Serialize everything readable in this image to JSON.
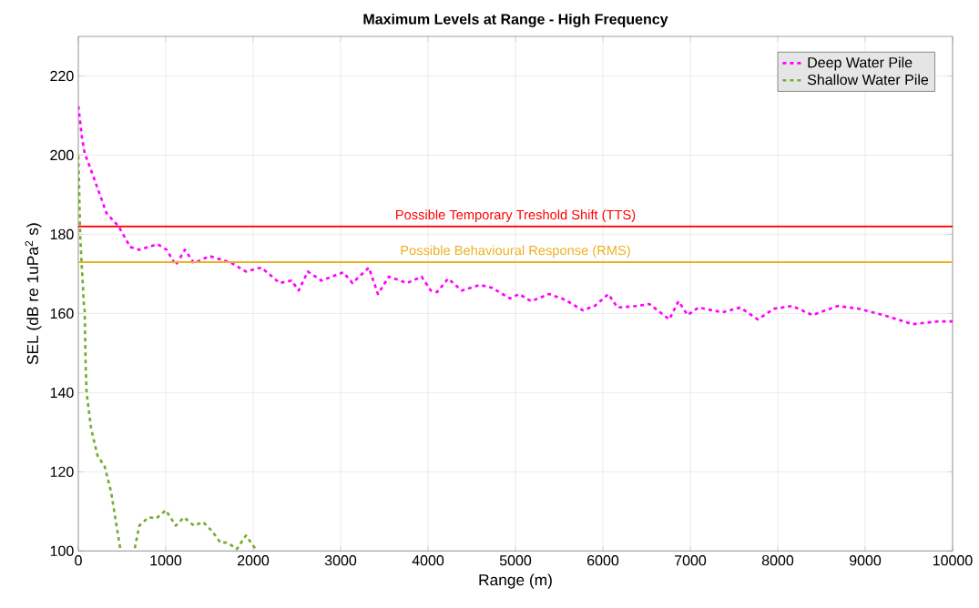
{
  "chart_data": {
    "type": "line",
    "title": "**Maximum Levels at Range - High Frequency**",
    "xlabel": "Range (m)",
    "ylabel": "SEL (dB re 1uPa$^{2}$ s)",
    "xlim": [
      0,
      10000
    ],
    "ylim": [
      100,
      230
    ],
    "xticks": [
      0,
      1000,
      2000,
      3000,
      4000,
      5000,
      6000,
      7000,
      8000,
      9000,
      10000
    ],
    "yticks": [
      100,
      120,
      140,
      160,
      180,
      200,
      220
    ],
    "grid": true,
    "legend": "top right",
    "series": [
      {
        "name": "Deep Water Pile",
        "color": "#ff00ff",
        "line_style": "dashed",
        "x": [
          0,
          42,
          73,
          177,
          323,
          458,
          594,
          698,
          906,
          1010,
          1115,
          1219,
          1323,
          1500,
          1740,
          1917,
          2094,
          2302,
          2438,
          2521,
          2625,
          2781,
          3031,
          3135,
          3323,
          3427,
          3552,
          3760,
          3927,
          4031,
          4104,
          4229,
          4385,
          4594,
          4729,
          4938,
          5042,
          5177,
          5385,
          5563,
          5771,
          5906,
          6063,
          6167,
          6396,
          6531,
          6760,
          6865,
          6969,
          7094,
          7365,
          7573,
          7771,
          7958,
          8167,
          8396,
          8688,
          8927,
          9208,
          9542,
          9833,
          10000
        ],
        "values": [
          212.4,
          204.4,
          200.5,
          194.3,
          185.3,
          182.1,
          176.8,
          176.1,
          177.5,
          176.1,
          172.2,
          176.1,
          172.7,
          174.5,
          172.9,
          170.6,
          171.6,
          167.7,
          168.3,
          165.8,
          170.6,
          168.3,
          170.4,
          167.7,
          171.6,
          164.9,
          169.3,
          167.7,
          169.3,
          165.8,
          165.4,
          168.8,
          165.8,
          167.2,
          166.5,
          163.8,
          164.9,
          163.1,
          164.9,
          163.5,
          160.8,
          161.9,
          164.9,
          161.5,
          161.9,
          162.4,
          158.5,
          163.1,
          159.6,
          161.5,
          160.3,
          161.5,
          158.5,
          161.2,
          161.9,
          159.6,
          161.9,
          161.2,
          159.6,
          157.3,
          158.0,
          158.0
        ]
      },
      {
        "name": "Shallow Water Pile",
        "color": "#77ac30",
        "line_style": "dashed",
        "x": [
          0,
          10,
          21,
          63,
          73,
          83,
          94,
          146,
          219,
          302,
          375,
          479,
          560,
          646,
          698,
          802,
          896,
          1000,
          1115,
          1208,
          1323,
          1427,
          1531,
          1625,
          1708,
          1813,
          1917,
          2021
        ],
        "values": [
          199.8,
          191.3,
          179.8,
          162.4,
          160.8,
          147.7,
          140.1,
          131.0,
          124.1,
          121.3,
          114.9,
          100.7,
          null,
          100.7,
          106.4,
          108.5,
          108.3,
          110.3,
          106.4,
          108.5,
          106.4,
          107.3,
          105.0,
          102.1,
          102.1,
          100.5,
          103.9,
          100.7
        ]
      }
    ],
    "ref_lines": [
      {
        "axis": "y",
        "value": 182,
        "label": "Possible Temporary Treshold Shift (TTS)",
        "color": "#ff0000"
      },
      {
        "axis": "y",
        "value": 173,
        "label": "Possible Behavioural Response (RMS)",
        "color": "#edb120"
      }
    ]
  }
}
